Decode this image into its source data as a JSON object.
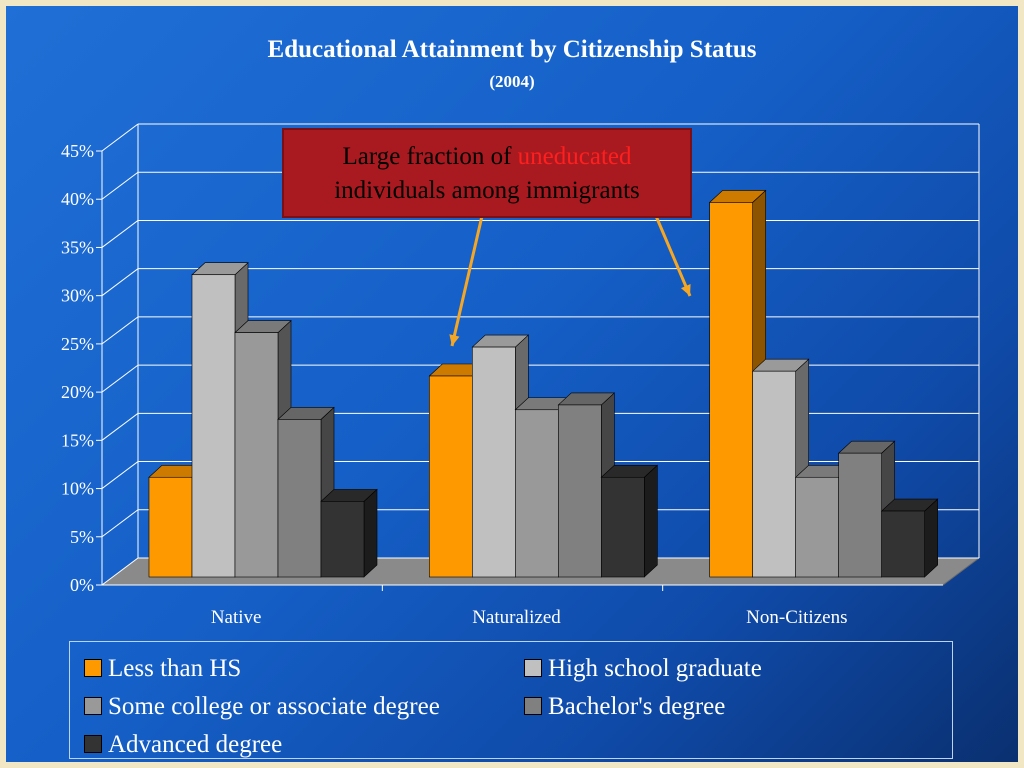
{
  "chart_data": {
    "type": "bar",
    "title": "Educational Attainment by Citizenship Status",
    "subtitle": "(2004)",
    "categories": [
      "Native",
      "Naturalized",
      "Non-Citizens"
    ],
    "series": [
      {
        "name": "Less than HS",
        "values": [
          12,
          22.5,
          40.5
        ],
        "color": "#ff9900"
      },
      {
        "name": "High school graduate",
        "values": [
          33,
          25.5,
          23
        ],
        "color": "#c0c0c0"
      },
      {
        "name": "Some college or associate degree",
        "values": [
          27,
          19,
          12
        ],
        "color": "#999999"
      },
      {
        "name": "Bachelor's degree",
        "values": [
          18,
          19.5,
          14.5
        ],
        "color": "#808080"
      },
      {
        "name": "Advanced degree",
        "values": [
          9.5,
          12,
          8.5
        ],
        "color": "#333333"
      }
    ],
    "yticks": [
      "0%",
      "5%",
      "10%",
      "15%",
      "20%",
      "25%",
      "30%",
      "35%",
      "40%",
      "45%"
    ],
    "ylim": [
      0,
      45
    ],
    "grid": true,
    "legend_position": "bottom",
    "annotation": {
      "text_before": "Large fraction of ",
      "highlight": "uneducated",
      "text_after": "individuals among immigrants"
    }
  }
}
